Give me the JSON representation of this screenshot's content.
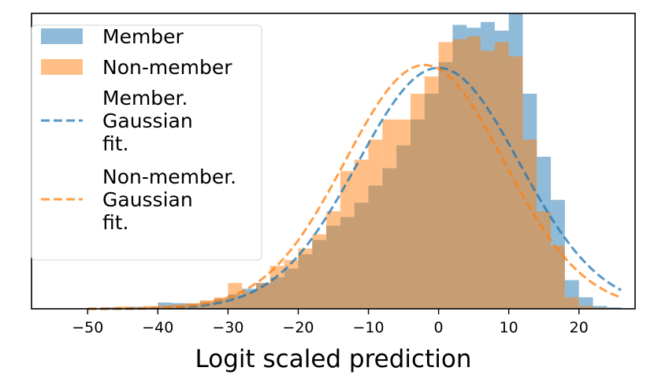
{
  "chart_data": {
    "type": "histogram",
    "xlabel": "Logit scaled prediction",
    "ylabel": "",
    "xlim": [
      -58,
      28
    ],
    "ylim": [
      0,
      1.03
    ],
    "x_ticks": [
      -50,
      -40,
      -30,
      -20,
      -10,
      0,
      10,
      20
    ],
    "y_ticks": [],
    "grid": false,
    "legend_position": "upper-left",
    "series": [
      {
        "name": "Member",
        "kind": "histogram",
        "color": "#1f77b4",
        "alpha": 0.5,
        "bins": [
          {
            "x0": -48,
            "x1": -46,
            "y": 0.005
          },
          {
            "x0": -46,
            "x1": -44,
            "y": 0.003
          },
          {
            "x0": -44,
            "x1": -42,
            "y": 0.007
          },
          {
            "x0": -42,
            "x1": -40,
            "y": 0.006
          },
          {
            "x0": -40,
            "x1": -38,
            "y": 0.022
          },
          {
            "x0": -38,
            "x1": -36,
            "y": 0.02
          },
          {
            "x0": -36,
            "x1": -34,
            "y": 0.018
          },
          {
            "x0": -34,
            "x1": -32,
            "y": 0.025
          },
          {
            "x0": -32,
            "x1": -30,
            "y": 0.035
          },
          {
            "x0": -30,
            "x1": -28,
            "y": 0.05
          },
          {
            "x0": -28,
            "x1": -26,
            "y": 0.07
          },
          {
            "x0": -26,
            "x1": -24,
            "y": 0.09
          },
          {
            "x0": -24,
            "x1": -22,
            "y": 0.11
          },
          {
            "x0": -22,
            "x1": -20,
            "y": 0.14
          },
          {
            "x0": -20,
            "x1": -18,
            "y": 0.19
          },
          {
            "x0": -18,
            "x1": -16,
            "y": 0.24
          },
          {
            "x0": -16,
            "x1": -14,
            "y": 0.29
          },
          {
            "x0": -14,
            "x1": -12,
            "y": 0.32
          },
          {
            "x0": -12,
            "x1": -10,
            "y": 0.37
          },
          {
            "x0": -10,
            "x1": -8,
            "y": 0.43
          },
          {
            "x0": -8,
            "x1": -6,
            "y": 0.49
          },
          {
            "x0": -6,
            "x1": -4,
            "y": 0.57
          },
          {
            "x0": -4,
            "x1": -2,
            "y": 0.66
          },
          {
            "x0": -2,
            "x1": 0,
            "y": 0.75
          },
          {
            "x0": 0,
            "x1": 2,
            "y": 0.86
          },
          {
            "x0": 2,
            "x1": 4,
            "y": 0.99
          },
          {
            "x0": 4,
            "x1": 6,
            "y": 0.98
          },
          {
            "x0": 6,
            "x1": 8,
            "y": 1.0
          },
          {
            "x0": 8,
            "x1": 10,
            "y": 0.97
          },
          {
            "x0": 10,
            "x1": 12,
            "y": 1.03
          },
          {
            "x0": 12,
            "x1": 14,
            "y": 0.75
          },
          {
            "x0": 14,
            "x1": 16,
            "y": 0.53
          },
          {
            "x0": 16,
            "x1": 18,
            "y": 0.38
          },
          {
            "x0": 18,
            "x1": 20,
            "y": 0.1
          },
          {
            "x0": 20,
            "x1": 22,
            "y": 0.04
          },
          {
            "x0": 22,
            "x1": 24,
            "y": 0.01
          },
          {
            "x0": 24,
            "x1": 26,
            "y": 0.005
          }
        ]
      },
      {
        "name": "Non-member",
        "kind": "histogram",
        "color": "#ff7f0e",
        "alpha": 0.5,
        "bins": [
          {
            "x0": -48,
            "x1": -46,
            "y": 0.004
          },
          {
            "x0": -46,
            "x1": -44,
            "y": 0.008
          },
          {
            "x0": -44,
            "x1": -42,
            "y": 0.006
          },
          {
            "x0": -42,
            "x1": -40,
            "y": 0.01
          },
          {
            "x0": -40,
            "x1": -38,
            "y": 0.012
          },
          {
            "x0": -38,
            "x1": -36,
            "y": 0.015
          },
          {
            "x0": -36,
            "x1": -34,
            "y": 0.02
          },
          {
            "x0": -34,
            "x1": -32,
            "y": 0.03
          },
          {
            "x0": -32,
            "x1": -30,
            "y": 0.04
          },
          {
            "x0": -30,
            "x1": -28,
            "y": 0.09
          },
          {
            "x0": -28,
            "x1": -26,
            "y": 0.06
          },
          {
            "x0": -26,
            "x1": -24,
            "y": 0.09
          },
          {
            "x0": -24,
            "x1": -22,
            "y": 0.15
          },
          {
            "x0": -22,
            "x1": -20,
            "y": 0.17
          },
          {
            "x0": -20,
            "x1": -18,
            "y": 0.21
          },
          {
            "x0": -18,
            "x1": -16,
            "y": 0.26
          },
          {
            "x0": -16,
            "x1": -14,
            "y": 0.34
          },
          {
            "x0": -14,
            "x1": -12,
            "y": 0.48
          },
          {
            "x0": -12,
            "x1": -10,
            "y": 0.52
          },
          {
            "x0": -10,
            "x1": -8,
            "y": 0.59
          },
          {
            "x0": -8,
            "x1": -6,
            "y": 0.66
          },
          {
            "x0": -6,
            "x1": -4,
            "y": 0.66
          },
          {
            "x0": -4,
            "x1": -2,
            "y": 0.75
          },
          {
            "x0": -2,
            "x1": 0,
            "y": 0.81
          },
          {
            "x0": 0,
            "x1": 2,
            "y": 0.93
          },
          {
            "x0": 2,
            "x1": 4,
            "y": 0.94
          },
          {
            "x0": 4,
            "x1": 6,
            "y": 0.95
          },
          {
            "x0": 6,
            "x1": 8,
            "y": 0.9
          },
          {
            "x0": 8,
            "x1": 10,
            "y": 0.93
          },
          {
            "x0": 10,
            "x1": 12,
            "y": 0.88
          },
          {
            "x0": 12,
            "x1": 14,
            "y": 0.59
          },
          {
            "x0": 14,
            "x1": 16,
            "y": 0.34
          },
          {
            "x0": 16,
            "x1": 18,
            "y": 0.22
          },
          {
            "x0": 18,
            "x1": 20,
            "y": 0.04
          },
          {
            "x0": 20,
            "x1": 22,
            "y": 0.01
          },
          {
            "x0": 22,
            "x1": 24,
            "y": 0.004
          }
        ]
      },
      {
        "name": "Member.\nGaussian\nfit.",
        "kind": "gaussian",
        "color": "#1f77b4",
        "mean": 0,
        "std": 11.5,
        "peak": 0.84,
        "x_range": [
          -50,
          26
        ]
      },
      {
        "name": "Non-member.\nGaussian\nfit.",
        "kind": "gaussian",
        "color": "#ff7f0e",
        "mean": -2,
        "std": 11.3,
        "peak": 0.85,
        "x_range": [
          -50,
          26
        ]
      }
    ]
  }
}
